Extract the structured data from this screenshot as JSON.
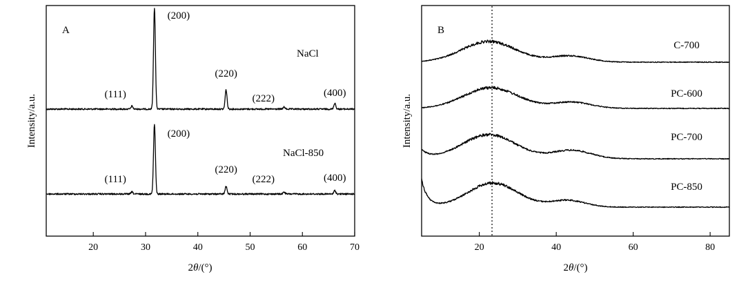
{
  "chart_data": [
    {
      "type": "line",
      "panel_label": "A",
      "xlabel_prefix": "2",
      "xlabel_symbol": "θ",
      "xlabel_suffix": "/(°)",
      "ylabel": "Intensity/a.u.",
      "xlim": [
        11,
        70
      ],
      "xticks": [
        20,
        30,
        40,
        50,
        60,
        70
      ],
      "series": [
        {
          "label": "NaCl",
          "peaks": [
            {
              "x": 27.4,
              "height": 0.03,
              "label": "(111)"
            },
            {
              "x": 31.7,
              "height": 1.0,
              "label": "(200)"
            },
            {
              "x": 45.4,
              "height": 0.19,
              "label": "(220)"
            },
            {
              "x": 56.5,
              "height": 0.02,
              "label": "(222)"
            },
            {
              "x": 66.2,
              "height": 0.06,
              "label": "(400)"
            }
          ]
        },
        {
          "label": "NaCl-850",
          "peaks": [
            {
              "x": 27.4,
              "height": 0.03,
              "label": "(111)"
            },
            {
              "x": 31.7,
              "height": 1.0,
              "label": "(200)"
            },
            {
              "x": 45.4,
              "height": 0.11,
              "label": "(220)"
            },
            {
              "x": 56.5,
              "height": 0.03,
              "label": "(222)"
            },
            {
              "x": 66.2,
              "height": 0.05,
              "label": "(400)"
            }
          ]
        }
      ]
    },
    {
      "type": "line",
      "panel_label": "B",
      "xlabel_prefix": "2",
      "xlabel_symbol": "θ",
      "xlabel_suffix": "/(°)",
      "ylabel": "Intensity/a.u.",
      "xlim": [
        5,
        85
      ],
      "xticks": [
        20,
        40,
        60,
        80
      ],
      "reference_x": 23.3,
      "series": [
        {
          "label": "C-700",
          "broad_peaks": [
            {
              "x": 22.5,
              "width": 7.0,
              "height": 1.0
            },
            {
              "x": 43.5,
              "width": 5.0,
              "height": 0.3
            }
          ]
        },
        {
          "label": "PC-600",
          "broad_peaks": [
            {
              "x": 23.0,
              "width": 7.0,
              "height": 1.0
            },
            {
              "x": 44.0,
              "width": 5.0,
              "height": 0.3
            }
          ]
        },
        {
          "label": "PC-700",
          "broad_peaks": [
            {
              "x": 22.5,
              "width": 7.0,
              "height": 1.0
            },
            {
              "x": 44.0,
              "width": 5.0,
              "height": 0.35
            }
          ]
        },
        {
          "label": "PC-850",
          "broad_peaks": [
            {
              "x": 23.5,
              "width": 6.5,
              "height": 1.0
            },
            {
              "x": 43.0,
              "width": 4.5,
              "height": 0.28
            }
          ]
        }
      ]
    }
  ]
}
